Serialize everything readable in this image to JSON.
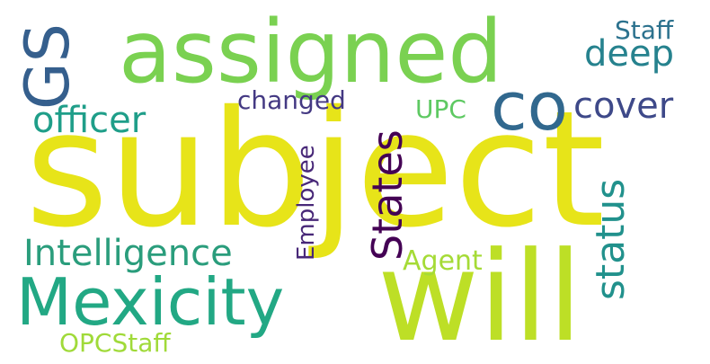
{
  "words": [
    {
      "text": "subject",
      "color": "#e7e419",
      "orientation": "horizontal"
    },
    {
      "text": "will",
      "color": "#bddf26",
      "orientation": "horizontal"
    },
    {
      "text": "assigned",
      "color": "#7ad151",
      "orientation": "horizontal"
    },
    {
      "text": "Mexicity",
      "color": "#22a884",
      "orientation": "horizontal"
    },
    {
      "text": "GS",
      "color": "#355f8d",
      "orientation": "vertical"
    },
    {
      "text": "co",
      "color": "#31688e",
      "orientation": "horizontal"
    },
    {
      "text": "Intelligence",
      "color": "#2a9d7c",
      "orientation": "horizontal"
    },
    {
      "text": "States",
      "color": "#440154",
      "orientation": "vertical"
    },
    {
      "text": "officer",
      "color": "#1f9e89",
      "orientation": "horizontal"
    },
    {
      "text": "status",
      "color": "#21918c",
      "orientation": "vertical"
    },
    {
      "text": "cover",
      "color": "#3e4989",
      "orientation": "horizontal"
    },
    {
      "text": "deep",
      "color": "#26828e",
      "orientation": "horizontal"
    },
    {
      "text": "changed",
      "color": "#443983",
      "orientation": "horizontal"
    },
    {
      "text": "Employee",
      "color": "#482878",
      "orientation": "vertical"
    },
    {
      "text": "Agent",
      "color": "#a5db36",
      "orientation": "horizontal"
    },
    {
      "text": "OPCStaff",
      "color": "#a0da39",
      "orientation": "horizontal"
    },
    {
      "text": "Staff",
      "color": "#2c728e",
      "orientation": "horizontal"
    },
    {
      "text": "UPC",
      "color": "#5ec962",
      "orientation": "horizontal"
    }
  ]
}
